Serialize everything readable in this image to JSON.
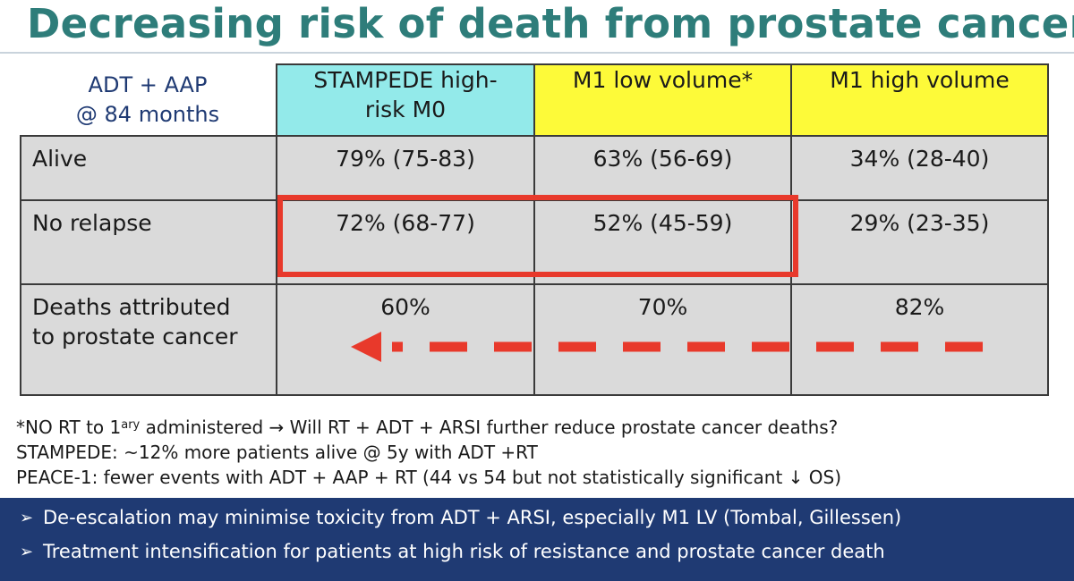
{
  "title": "Decreasing risk of death from prostate cancer",
  "table": {
    "corner_line1": "ADT + AAP",
    "corner_line2": "@ 84 months",
    "columns": [
      {
        "line1": "STAMPEDE high-",
        "line2": "risk M0",
        "color": "#93eaea"
      },
      {
        "line1": "M1 low volume*",
        "line2": "",
        "color": "#fdfa39"
      },
      {
        "line1": "M1 high volume",
        "line2": "",
        "color": "#fdfa39"
      }
    ],
    "rows": [
      {
        "label_line1": "Alive",
        "label_line2": "",
        "values": [
          "79% (75-83)",
          "63% (56-69)",
          "34% (28-40)"
        ]
      },
      {
        "label_line1": "No relapse",
        "label_line2": "",
        "values": [
          "72% (68-77)",
          "52% (45-59)",
          "29% (23-35)"
        ]
      },
      {
        "label_line1": "Deaths attributed",
        "label_line2": "to prostate cancer",
        "values": [
          "60%",
          "70%",
          "82%"
        ]
      }
    ],
    "highlight_color": "#e8392b"
  },
  "notes": {
    "line1_a": "*NO RT to 1",
    "line1_sup": "ary",
    "line1_b": " administered → Will RT + ADT + ARSI further reduce prostate cancer deaths?",
    "line2": "STAMPEDE: ~12% more patients alive @ 5y with ADT +RT",
    "line3": "PEACE-1: fewer events with ADT + AAP + RT (44 vs 54 but not statistically significant ↓ OS)"
  },
  "banner": {
    "bullet_icon": "➢",
    "bullets": [
      "De-escalation may minimise toxicity from ADT + ARSI, especially M1 LV (Tombal, Gillessen)",
      "Treatment intensification for patients at high risk of resistance and prostate cancer death"
    ],
    "background": "#1f3a73"
  }
}
